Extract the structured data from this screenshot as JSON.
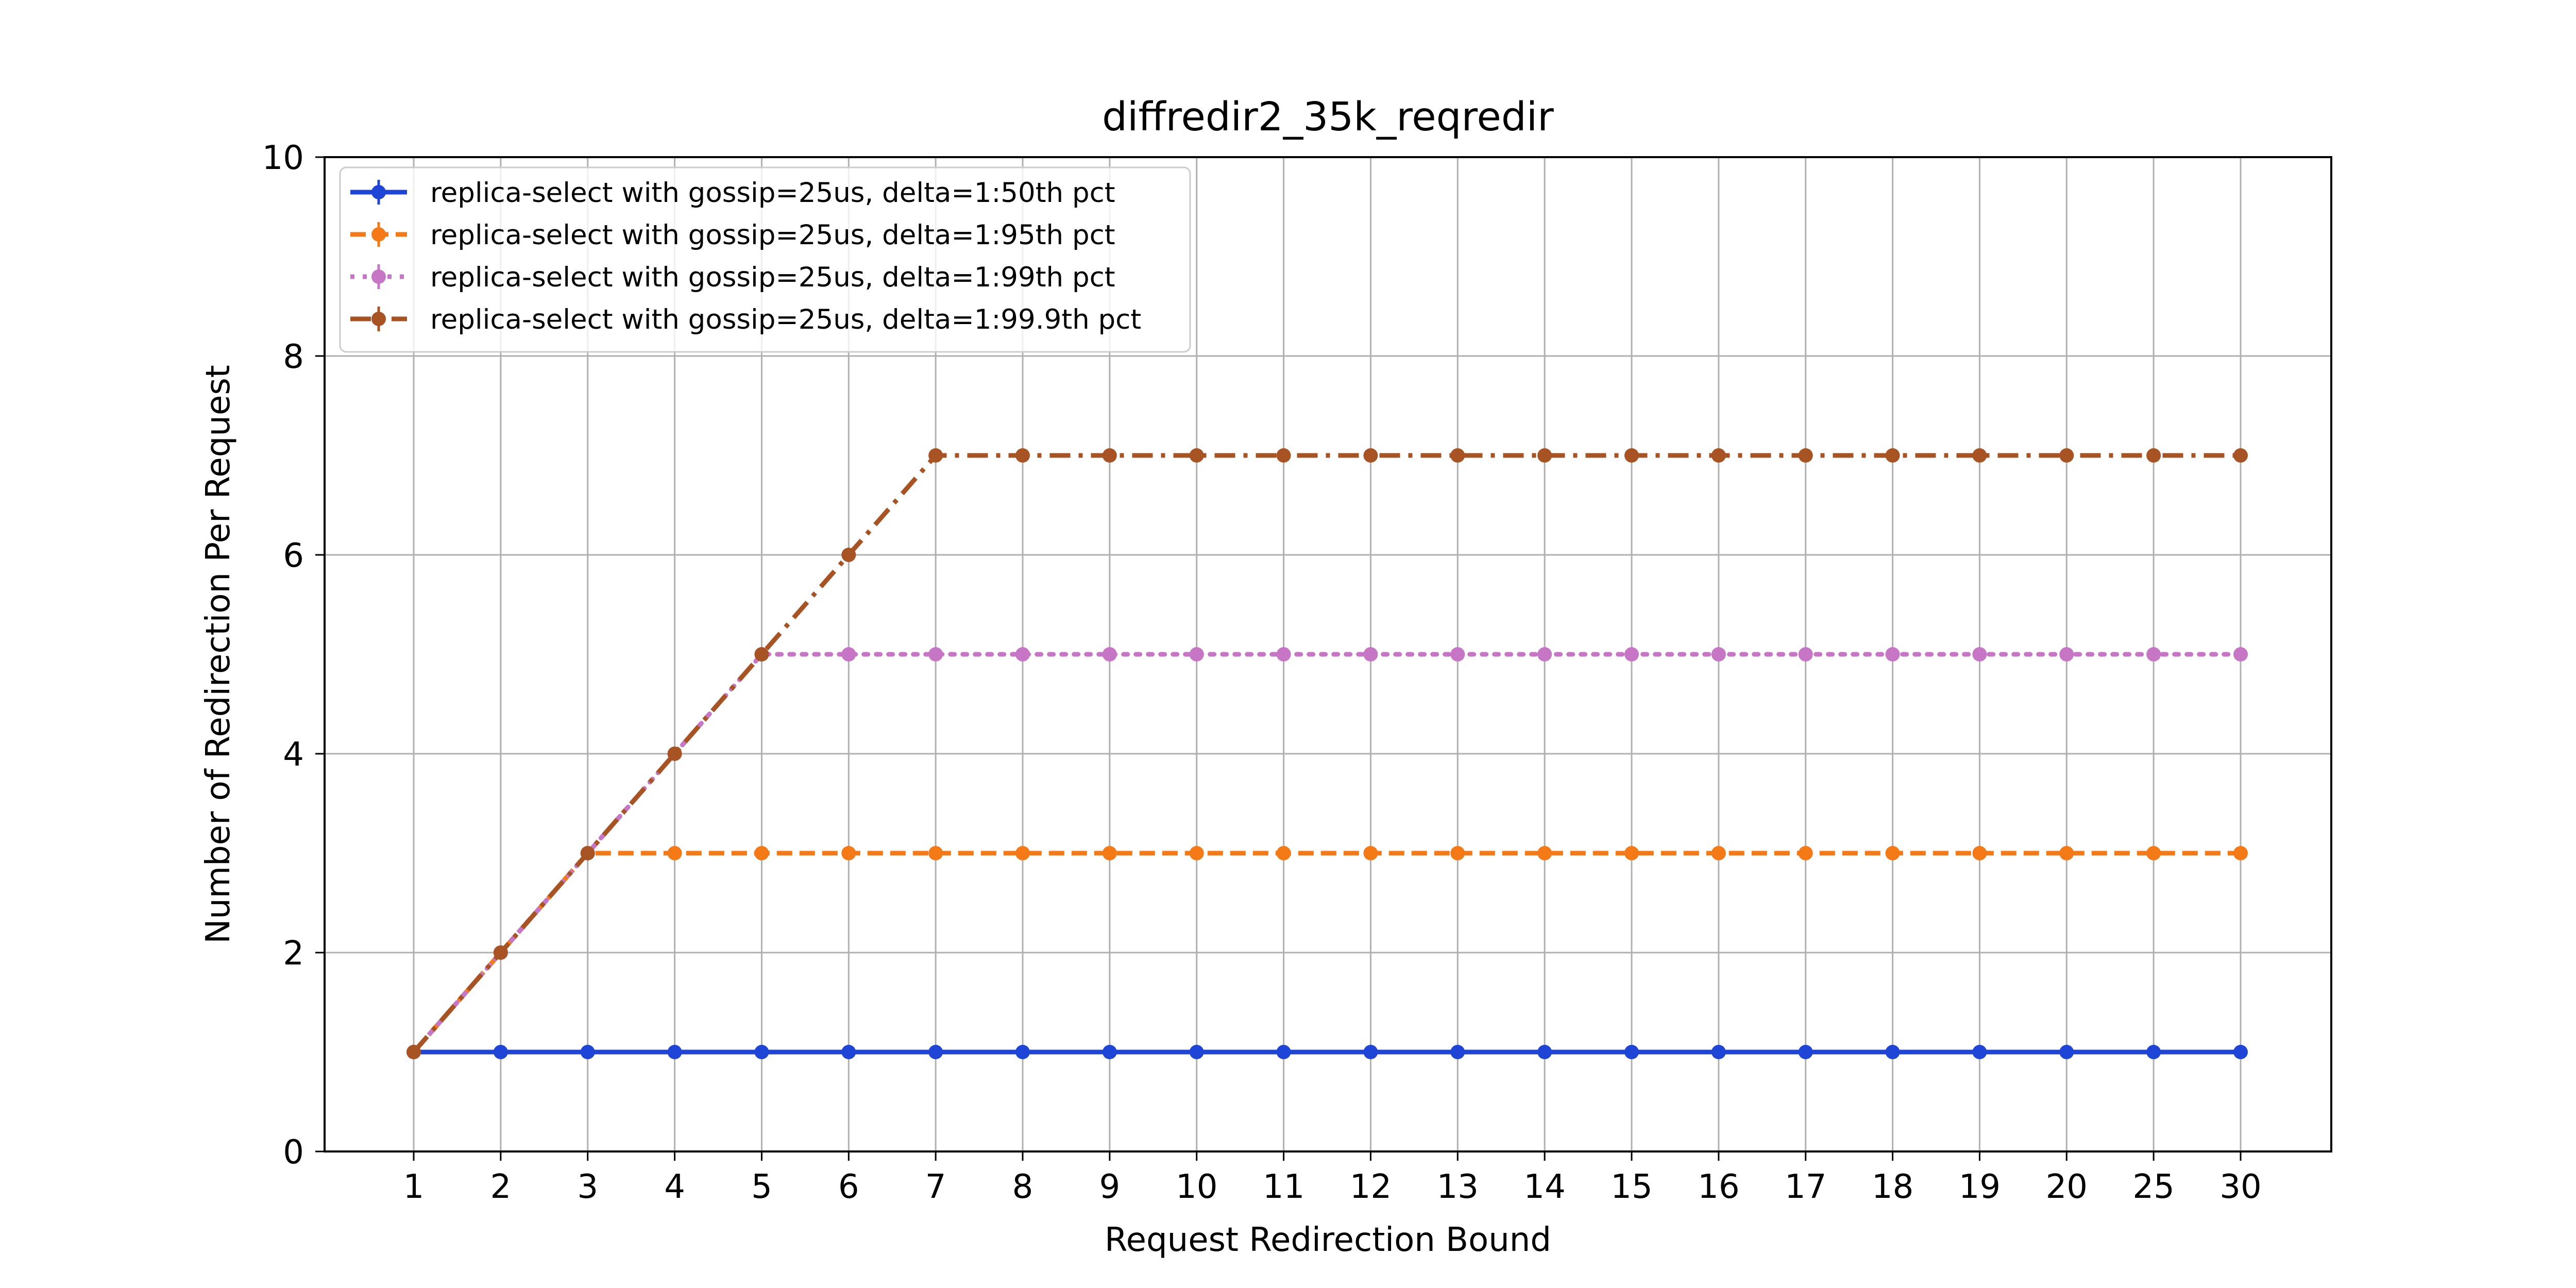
{
  "chart_data": {
    "type": "line",
    "title": "diffredir2_35k_reqredir",
    "xlabel": "Request Redirection Bound",
    "ylabel": "Number of Redirection Per Request",
    "categories": [
      "1",
      "2",
      "3",
      "4",
      "5",
      "6",
      "7",
      "8",
      "9",
      "10",
      "11",
      "12",
      "13",
      "14",
      "15",
      "16",
      "17",
      "18",
      "19",
      "20",
      "25",
      "30"
    ],
    "ylim": [
      0,
      10
    ],
    "yticks": [
      "0",
      "2",
      "4",
      "6",
      "8",
      "10"
    ],
    "grid": true,
    "legend_position": "top-left",
    "series": [
      {
        "name": "replica-select with gossip=25us, delta=1:50th pct",
        "color": "#1f45d6",
        "linestyle": "solid",
        "values": [
          1,
          1,
          1,
          1,
          1,
          1,
          1,
          1,
          1,
          1,
          1,
          1,
          1,
          1,
          1,
          1,
          1,
          1,
          1,
          1,
          1,
          1
        ]
      },
      {
        "name": "replica-select with gossip=25us, delta=1:95th pct",
        "color": "#f47a17",
        "linestyle": "dashed",
        "values": [
          1,
          2,
          3,
          3,
          3,
          3,
          3,
          3,
          3,
          3,
          3,
          3,
          3,
          3,
          3,
          3,
          3,
          3,
          3,
          3,
          3,
          3
        ]
      },
      {
        "name": "replica-select with gossip=25us, delta=1:99th pct",
        "color": "#c776c5",
        "linestyle": "dotted",
        "values": [
          1,
          2,
          3,
          4,
          5,
          5,
          5,
          5,
          5,
          5,
          5,
          5,
          5,
          5,
          5,
          5,
          5,
          5,
          5,
          5,
          5,
          5
        ]
      },
      {
        "name": "replica-select with gossip=25us, delta=1:99.9th pct",
        "color": "#a85323",
        "linestyle": "dashdot",
        "values": [
          1,
          2,
          3,
          4,
          5,
          6,
          7,
          7,
          7,
          7,
          7,
          7,
          7,
          7,
          7,
          7,
          7,
          7,
          7,
          7,
          7,
          7
        ]
      }
    ]
  }
}
